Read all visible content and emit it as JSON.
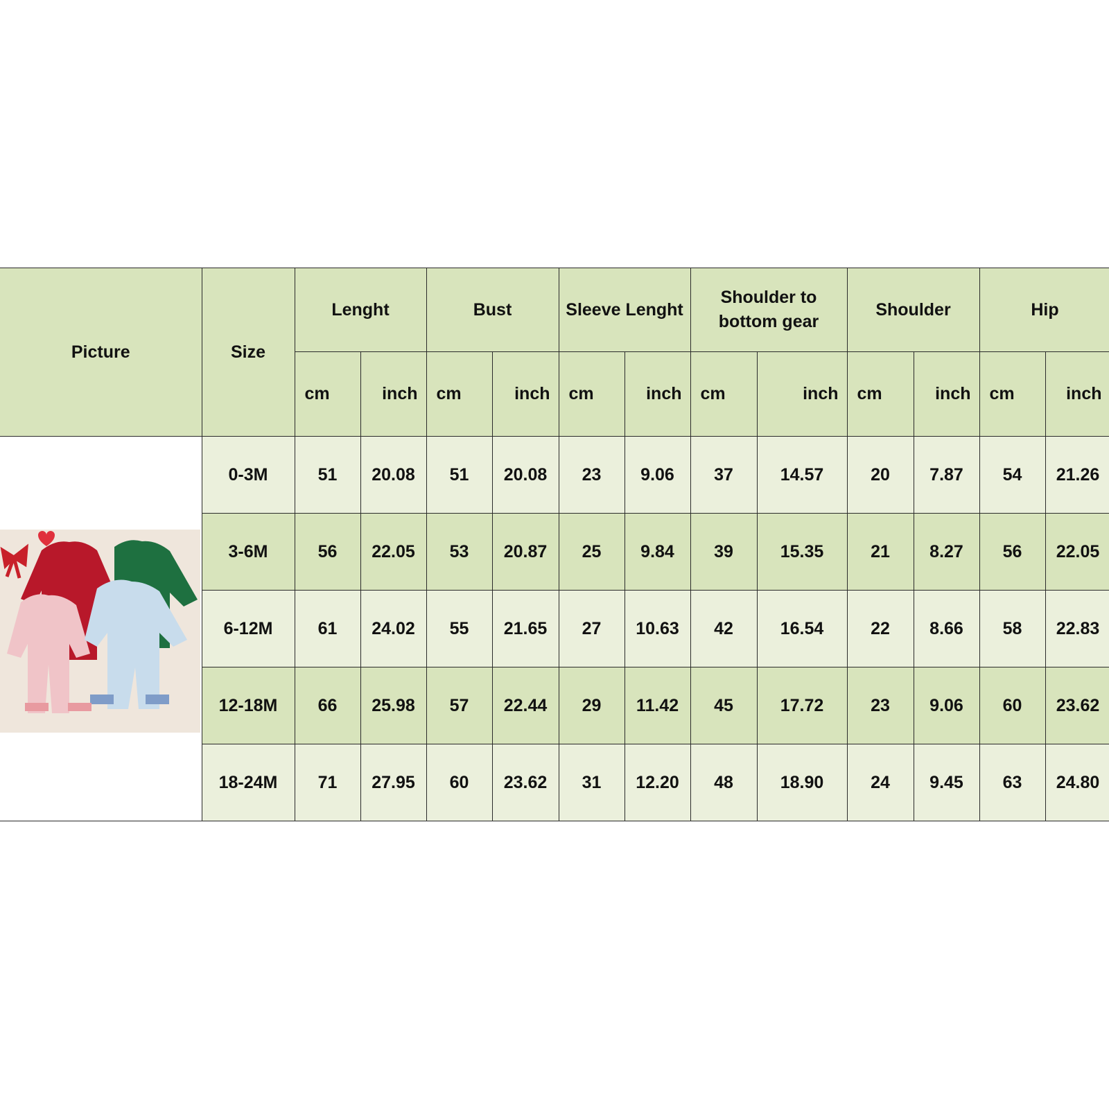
{
  "header": {
    "picture": "Picture",
    "size": "Size",
    "groups": [
      "Lenght",
      "Bust",
      "Sleeve Lenght",
      "Shoulder to bottom gear",
      "Shoulder",
      "Hip"
    ],
    "units": [
      "cm",
      "inch"
    ]
  },
  "rows": [
    {
      "size": "0-3M",
      "values": [
        "51",
        "20.08",
        "51",
        "20.08",
        "23",
        "9.06",
        "37",
        "14.57",
        "20",
        "7.87",
        "54",
        "21.26"
      ]
    },
    {
      "size": "3-6M",
      "values": [
        "56",
        "22.05",
        "53",
        "20.87",
        "25",
        "9.84",
        "39",
        "15.35",
        "21",
        "8.27",
        "56",
        "22.05"
      ]
    },
    {
      "size": "6-12M",
      "values": [
        "61",
        "24.02",
        "55",
        "21.65",
        "27",
        "10.63",
        "42",
        "16.54",
        "22",
        "8.66",
        "58",
        "22.83"
      ]
    },
    {
      "size": "12-18M",
      "values": [
        "66",
        "25.98",
        "57",
        "22.44",
        "29",
        "11.42",
        "45",
        "17.72",
        "23",
        "9.06",
        "60",
        "23.62"
      ]
    },
    {
      "size": "18-24M",
      "values": [
        "71",
        "27.95",
        "60",
        "23.62",
        "31",
        "12.20",
        "48",
        "18.90",
        "24",
        "9.45",
        "63",
        "24.80"
      ]
    }
  ],
  "colors": {
    "header_bg": "#d8e4bc",
    "row_light": "#ebf0dc",
    "row_dark": "#d8e4bc"
  }
}
